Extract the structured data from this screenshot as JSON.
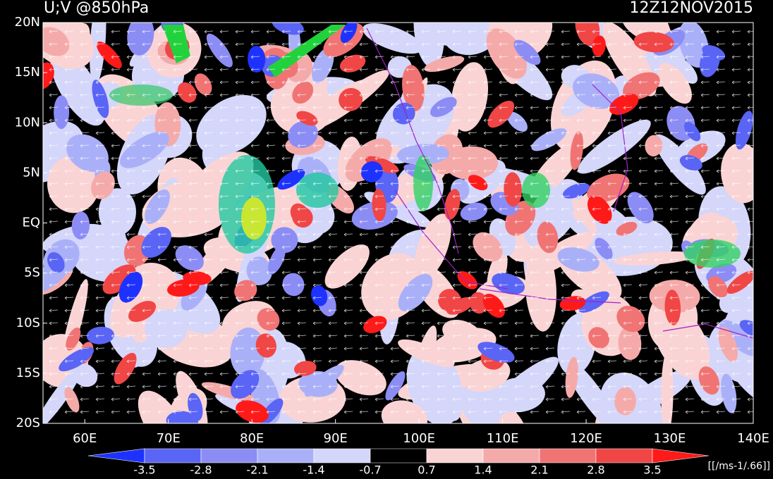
{
  "header": {
    "title": "U;V @850hPa",
    "time": "12Z12NOV2015"
  },
  "map": {
    "lon_range": [
      55,
      140
    ],
    "lat_range": [
      -20,
      20
    ],
    "lon_ticks": [
      {
        "value": 60,
        "label": "60E"
      },
      {
        "value": 70,
        "label": "70E"
      },
      {
        "value": 80,
        "label": "80E"
      },
      {
        "value": 90,
        "label": "90E"
      },
      {
        "value": 100,
        "label": "100E"
      },
      {
        "value": 110,
        "label": "110E"
      },
      {
        "value": 120,
        "label": "120E"
      },
      {
        "value": 130,
        "label": "130E"
      },
      {
        "value": 140,
        "label": "140E"
      }
    ],
    "lat_ticks": [
      {
        "value": 20,
        "label": "20N"
      },
      {
        "value": 15,
        "label": "15N"
      },
      {
        "value": 10,
        "label": "10N"
      },
      {
        "value": 5,
        "label": "5N"
      },
      {
        "value": 0,
        "label": "EQ"
      },
      {
        "value": -5,
        "label": "5S"
      },
      {
        "value": -10,
        "label": "10S"
      },
      {
        "value": -15,
        "label": "15S"
      },
      {
        "value": -20,
        "label": "20S"
      }
    ]
  },
  "colorbar": {
    "levels": [
      -3.5,
      -2.8,
      -2.1,
      -1.4,
      -0.7,
      0.7,
      1.4,
      2.1,
      2.8,
      3.5
    ],
    "colors": [
      "#1e32ff",
      "#5a64f5",
      "#8c8cf5",
      "#aab0f8",
      "#d4d6fa",
      "#000000",
      "#fad4d4",
      "#f5aaaa",
      "#f07474",
      "#f04646",
      "#ff1a1a"
    ],
    "units": "[[/ms-1/.66]]"
  }
}
